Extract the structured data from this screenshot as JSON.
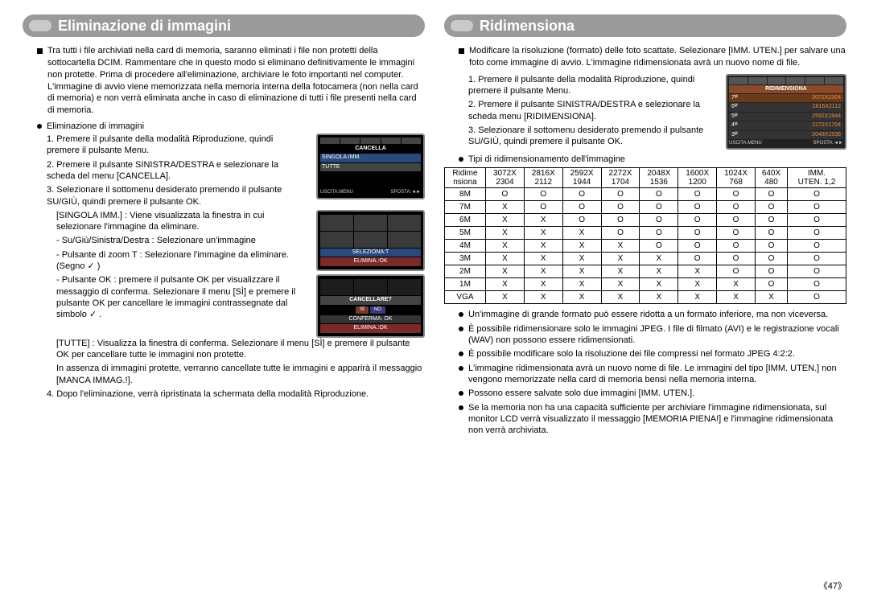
{
  "pageNumber": "《47》",
  "left": {
    "title": "Eliminazione di immagini",
    "lead": "Tra tutti i file archiviati nella card di memoria, saranno eliminati i file non protetti della sottocartella DCIM. Rammentare che in questo modo si eliminano definitivamente le immagini non protette. Prima di procedere all'eliminazione, archiviare le foto importanti nel computer. L'immagine di avvio viene memorizzata nella memoria interna della fotocamera (non nella card di memoria) e non verrà eliminata anche in caso di eliminazione di tutti i file presenti nella card di memoria.",
    "subheader": "Eliminazione di immagini",
    "steps": {
      "s1": "1. Premere il pulsante della modalità Riproduzione, quindi premere il pulsante Menu.",
      "s2a": "2. Premere il pulsante SINISTRA/DESTRA e selezionare la scheda del menu [CANCELLA].",
      "s3a": "3. Selezionare il sottomenu desiderato premendo il pulsante SU/GIÙ, quindi premere il pulsante OK.",
      "s3b": "[SINGOLA IMM.] : Viene visualizzata la finestra in cui selezionare l'immagine da eliminare.",
      "s3c": "- Su/Giù/Sinistra/Destra : Selezionare un'immagine",
      "s3d": "- Pulsante di zoom T : Selezionare l'immagine da eliminare. (Segno ✓ )",
      "s3e": "- Pulsante OK : premere il pulsante OK per visualizzare il messaggio di conferma. Selezionare il menu [SÌ] e premere il pulsante OK per cancellare le immagini contrassegnate dal simbolo ✓ .",
      "s3f": "[TUTTE] : Visualizza la finestra di conferma. Selezionare il menu [SÌ] e premere il pulsante OK per cancellare tutte le immagini non protette.",
      "s3g": "In assenza di immagini protette, verranno cancellate tutte le immagini e apparirà il messaggio [MANCA IMMAG.!].",
      "s4": "4. Dopo l'eliminazione, verrà ripristinata la schermata della modalità Riproduzione."
    },
    "lcd1": {
      "title": "CANCELLA",
      "opt1": "SINGOLA IMM.",
      "opt2": "TUTTE",
      "foot1": "USCITA:MENU",
      "foot2": "SPOSTA:◄►"
    },
    "lcd2": {
      "sel": "SELEZIONA:T",
      "del": "ELIMINA.:OK"
    },
    "lcd3": {
      "q": "CANCELLARE?",
      "si": "SÌ",
      "no": "NO",
      "conf": "CONFERMA: OK",
      "del": "ELIMINA.:OK"
    }
  },
  "right": {
    "title": "Ridimensiona",
    "lead": "Modificare la risoluzione (formato) delle foto scattate. Selezionare [IMM. UTEN.] per salvare una foto come immagine di avvio. L'immagine ridimensionata avrà un nuovo nome di file.",
    "steps": {
      "s1": "1. Premere il pulsante della modalità Riproduzione, quindi premere il pulsante Menu.",
      "s2": "2. Premere il pulsante SINISTRA/DESTRA e selezionare la scheda menu [RIDIMENSIONA].",
      "s3": "3. Selezionare il sottomenu desiderato premendo il pulsante SU/GIÙ, quindi premere il pulsante OK."
    },
    "menu": {
      "title": "RIDIMENSIONA",
      "l1a": "7ᴹ",
      "l1b": "3072X2304",
      "l2a": "6ᴹ",
      "l2b": "2816X2112",
      "l3a": "5ᴹ",
      "l3b": "2592X1944",
      "l4a": "4ᴹ",
      "l4b": "2272X1704",
      "l5a": "3ᴹ",
      "l5b": "2048X1536",
      "foot1": "USCITA:MENU",
      "foot2": "SPOSTA:◄►"
    },
    "tableHeader": "Tipi di ridimensionamento dell'immagine",
    "table": {
      "h0": "Ridime\nnsiona",
      "cols": [
        "3072X\n2304",
        "2816X\n2112",
        "2592X\n1944",
        "2272X\n1704",
        "2048X\n1536",
        "1600X\n1200",
        "1024X\n768",
        "640X\n480",
        "IMM.\nUTEN. 1,2"
      ],
      "rows": [
        {
          "label": "8M",
          "cells": [
            "O",
            "O",
            "O",
            "O",
            "O",
            "O",
            "O",
            "O",
            "O"
          ]
        },
        {
          "label": "7M",
          "cells": [
            "X",
            "O",
            "O",
            "O",
            "O",
            "O",
            "O",
            "O",
            "O"
          ]
        },
        {
          "label": "6M",
          "cells": [
            "X",
            "X",
            "O",
            "O",
            "O",
            "O",
            "O",
            "O",
            "O"
          ]
        },
        {
          "label": "5M",
          "cells": [
            "X",
            "X",
            "X",
            "O",
            "O",
            "O",
            "O",
            "O",
            "O"
          ]
        },
        {
          "label": "4M",
          "cells": [
            "X",
            "X",
            "X",
            "X",
            "O",
            "O",
            "O",
            "O",
            "O"
          ]
        },
        {
          "label": "3M",
          "cells": [
            "X",
            "X",
            "X",
            "X",
            "X",
            "O",
            "O",
            "O",
            "O"
          ]
        },
        {
          "label": "2M",
          "cells": [
            "X",
            "X",
            "X",
            "X",
            "X",
            "X",
            "O",
            "O",
            "O"
          ]
        },
        {
          "label": "1M",
          "cells": [
            "X",
            "X",
            "X",
            "X",
            "X",
            "X",
            "X",
            "O",
            "O"
          ]
        },
        {
          "label": "VGA",
          "cells": [
            "X",
            "X",
            "X",
            "X",
            "X",
            "X",
            "X",
            "X",
            "O"
          ]
        }
      ]
    },
    "bullets": {
      "b1": "Un'immagine di grande formato può essere ridotta a un formato inferiore, ma non viceversa.",
      "b2": "È possibile ridimensionare solo le immagini JPEG. I file di filmato (AVI) e le registrazione vocali (WAV) non possono essere ridimensionati.",
      "b3": "È possibile modificare solo la risoluzione dei file compressi nel formato JPEG 4:2:2.",
      "b4": "L'immagine ridimensionata avrà un nuovo nome di file. Le immagini del tipo [IMM. UTEN.] non vengono memorizzate nella card di memoria bensì nella memoria interna.",
      "b5": "Possono essere salvate solo due immagini [IMM. UTEN.].",
      "b6": "Se la memoria non ha una capacità sufficiente per archiviare l'immagine ridimensionata, sul monitor LCD verrà visualizzato il messaggio [MEMORIA PIENA!] e l'immagine ridimensionata non verrà archiviata."
    }
  }
}
